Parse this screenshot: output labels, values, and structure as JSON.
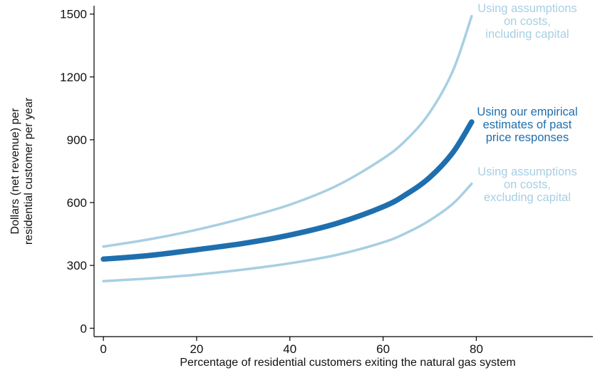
{
  "chart_data": {
    "type": "line",
    "title": "",
    "xlabel": "Percentage of residential customers exiting the natural gas system",
    "ylabel_lines": [
      "Dollars (net revenue) per",
      "residential customer per year"
    ],
    "xlim": [
      -2,
      105
    ],
    "ylim": [
      -40,
      1540
    ],
    "xticks": [
      0,
      20,
      40,
      60,
      80
    ],
    "yticks": [
      0,
      300,
      600,
      900,
      1200,
      1500
    ],
    "grid": false,
    "legend": "none (direct labels at line ends)",
    "series": [
      {
        "label_lines": [
          "Using assumptions",
          "on costs,",
          "including capital"
        ],
        "color": "#a8cfe3",
        "x": [
          0,
          10,
          20,
          30,
          40,
          50,
          60,
          65,
          70,
          75,
          79
        ],
        "y": [
          390,
          425,
          470,
          525,
          590,
          680,
          810,
          900,
          1030,
          1230,
          1490
        ]
      },
      {
        "label_lines": [
          "Using our empirical",
          "estimates of past",
          "price responses"
        ],
        "color": "#1f6fae",
        "x": [
          0,
          10,
          20,
          30,
          40,
          50,
          60,
          65,
          70,
          75,
          79
        ],
        "y": [
          330,
          348,
          375,
          405,
          445,
          500,
          580,
          640,
          720,
          840,
          985
        ]
      },
      {
        "label_lines": [
          "Using assumptions",
          "on costs,",
          "excluding capital"
        ],
        "color": "#a8cfe3",
        "x": [
          0,
          10,
          20,
          30,
          40,
          50,
          60,
          65,
          70,
          75,
          79
        ],
        "y": [
          225,
          238,
          256,
          280,
          310,
          350,
          410,
          455,
          515,
          595,
          690
        ]
      }
    ]
  }
}
